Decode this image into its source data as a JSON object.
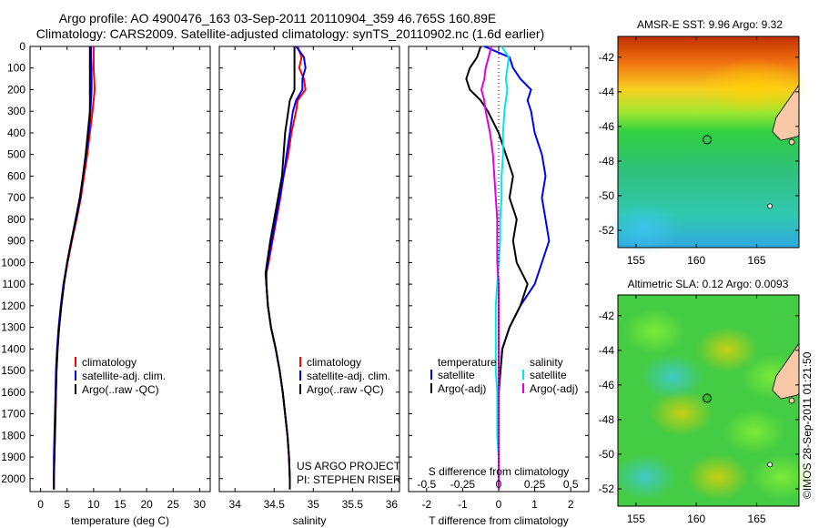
{
  "header": {
    "line1": "Argo profile: AO 4900476_163 03-Sep-2011 20110904_359 46.765S 160.89E",
    "line2": "Climatology: CARS2009. Satellite-adjusted climatology: synTS_20110902.nc (1.6d earlier)"
  },
  "colors": {
    "climatology": "#ff0000",
    "satellite": "#0000ff",
    "argo": "#000000",
    "sal_sat": "#00e5ee",
    "sal_argo": "#e000e0"
  },
  "depth_ticks": [
    "0",
    "100",
    "200",
    "300",
    "400",
    "500",
    "600",
    "700",
    "800",
    "900",
    "1000",
    "1100",
    "1200",
    "1300",
    "1400",
    "1500",
    "1600",
    "1700",
    "1800",
    "1900",
    "2000"
  ],
  "chart_data": [
    {
      "type": "line",
      "xlabel": "temperature (deg C)",
      "xlim": [
        -2,
        32
      ],
      "ylim": [
        0,
        2060
      ],
      "xticks": [
        "0",
        "5",
        "10",
        "15",
        "20",
        "25",
        "30"
      ],
      "legend": [
        "climatology",
        "satellite-adj. clim.",
        "Argo(..raw -QC)"
      ],
      "depth": [
        0,
        50,
        100,
        150,
        200,
        250,
        300,
        400,
        500,
        600,
        700,
        800,
        900,
        1000,
        1100,
        1200,
        1300,
        1400,
        1500,
        1600,
        1700,
        1800,
        1900,
        2000,
        2050
      ],
      "series": [
        {
          "name": "climatology",
          "values": [
            10,
            10,
            10,
            10.1,
            10.2,
            10,
            9.8,
            9.3,
            8.8,
            8.2,
            7.6,
            6.8,
            5.9,
            5.1,
            4.4,
            3.9,
            3.5,
            3.2,
            3.0,
            2.9,
            2.8,
            2.7,
            2.6,
            2.5,
            2.5
          ]
        },
        {
          "name": "satellite-adj. clim.",
          "values": [
            9.5,
            9.5,
            9.6,
            9.6,
            9.6,
            9.5,
            9.4,
            9.1,
            8.6,
            8.0,
            7.5,
            6.7,
            5.8,
            5.0,
            4.3,
            3.8,
            3.4,
            3.1,
            2.9,
            2.8,
            2.7,
            2.6,
            2.5,
            2.5,
            2.5
          ]
        },
        {
          "name": "Argo(..raw -QC)",
          "values": [
            9.3,
            9.3,
            9.3,
            9.3,
            9.3,
            9.3,
            9.3,
            8.9,
            8.5,
            8.0,
            7.4,
            6.6,
            5.8,
            5.0,
            4.4,
            3.9,
            3.5,
            3.2,
            3.0,
            2.9,
            2.8,
            2.7,
            2.6,
            2.5,
            2.5
          ]
        }
      ]
    },
    {
      "type": "line",
      "xlabel": "salinity",
      "xlim": [
        33.8,
        36.1
      ],
      "ylim": [
        0,
        2060
      ],
      "xticks": [
        "34",
        "34.5",
        "35",
        "35.5",
        "36"
      ],
      "legend": [
        "climatology",
        "satellite-adj. clim.",
        "Argo(..raw -QC)"
      ],
      "annotation": [
        "US ARGO PROJECT",
        "PI: STEPHEN RISER"
      ],
      "depth": [
        0,
        50,
        100,
        150,
        200,
        250,
        300,
        400,
        500,
        600,
        700,
        800,
        900,
        1000,
        1050,
        1100,
        1200,
        1300,
        1400,
        1500,
        1600,
        1700,
        1800,
        1900,
        2000,
        2050
      ],
      "series": [
        {
          "name": "climatology",
          "values": [
            34.8,
            34.85,
            34.82,
            34.88,
            34.9,
            34.8,
            34.78,
            34.72,
            34.68,
            34.62,
            34.58,
            34.53,
            34.48,
            34.43,
            34.4,
            34.4,
            34.42,
            34.46,
            34.52,
            34.57,
            34.61,
            34.64,
            34.67,
            34.69,
            34.7,
            34.7
          ]
        },
        {
          "name": "satellite-adj. clim.",
          "values": [
            34.78,
            34.88,
            34.9,
            34.86,
            34.86,
            34.78,
            34.74,
            34.7,
            34.66,
            34.62,
            34.57,
            34.52,
            34.47,
            34.42,
            34.4,
            34.4,
            34.42,
            34.46,
            34.52,
            34.57,
            34.61,
            34.64,
            34.67,
            34.69,
            34.7,
            34.7
          ]
        },
        {
          "name": "Argo(..raw -QC)",
          "values": [
            34.76,
            34.76,
            34.76,
            34.76,
            34.76,
            34.7,
            34.68,
            34.64,
            34.62,
            34.6,
            34.55,
            34.5,
            34.45,
            34.41,
            34.39,
            34.4,
            34.42,
            34.46,
            34.52,
            34.57,
            34.61,
            34.64,
            34.67,
            34.69,
            34.7,
            34.7
          ]
        }
      ]
    },
    {
      "type": "line",
      "xlabel": "T difference from climatology",
      "xlabel_top": "S difference from climatology",
      "xlim": [
        -2.5,
        2.5
      ],
      "ylim": [
        0,
        2060
      ],
      "xticks": [
        "-2",
        "-1",
        "0",
        "1",
        "2"
      ],
      "xticks_top": [
        "-0.5",
        "-0.25",
        "0",
        "0.25",
        "0.5"
      ],
      "legend_temperature": [
        "temperature",
        "satellite",
        "Argo(-adj)"
      ],
      "legend_salinity": [
        "salinity",
        "satellite",
        "Argo(-adj)"
      ],
      "depth": [
        0,
        50,
        100,
        150,
        200,
        250,
        300,
        400,
        500,
        600,
        700,
        800,
        900,
        1000,
        1100,
        1200,
        1300,
        1400,
        1500,
        1600,
        1700,
        1800,
        1900,
        2000,
        2050
      ],
      "series": [
        {
          "name": "T satellite",
          "values": [
            -0.4,
            0.3,
            0.4,
            0.6,
            0.9,
            0.8,
            0.9,
            1.0,
            1.2,
            1.3,
            1.2,
            1.3,
            1.4,
            1.2,
            1.0,
            0.6,
            0.3,
            0.1,
            0.05,
            0,
            0,
            0,
            0,
            0,
            0
          ]
        },
        {
          "name": "T Argo",
          "values": [
            -0.5,
            -0.6,
            -0.8,
            -0.9,
            -0.8,
            -0.5,
            -0.3,
            0,
            0.2,
            0.4,
            0.3,
            0.5,
            0.4,
            0.5,
            0.8,
            0.6,
            0.3,
            0.1,
            0.05,
            0,
            0,
            0,
            0,
            0,
            0
          ]
        },
        {
          "name": "S satellite",
          "values": [
            0.02,
            0.07,
            0.06,
            0.05,
            0.06,
            0.05,
            0.04,
            0.03,
            0.03,
            0.02,
            0.02,
            0.01,
            0.01,
            0.0,
            -0.01,
            -0.02,
            -0.02,
            -0.02,
            -0.02,
            -0.01,
            -0.01,
            -0.01,
            0,
            0,
            0
          ]
        },
        {
          "name": "S Argo",
          "values": [
            -0.05,
            -0.07,
            -0.09,
            -0.1,
            -0.12,
            -0.1,
            -0.09,
            -0.06,
            -0.04,
            -0.03,
            -0.02,
            -0.01,
            -0.01,
            -0.01,
            0,
            0,
            0,
            0,
            0,
            0,
            0,
            0,
            0,
            0,
            0
          ]
        }
      ]
    },
    {
      "type": "heatmap",
      "title": "AMSR-E SST: 9.96 Argo: 9.32",
      "xticks": [
        "155",
        "160",
        "165"
      ],
      "yticks": [
        "-42",
        "-44",
        "-46",
        "-48",
        "-50",
        "-52"
      ],
      "xlim": [
        153.5,
        168.5
      ],
      "ylim": [
        -53,
        -40.8
      ],
      "argo_position": {
        "lon": 160.89,
        "lat": -46.765
      }
    },
    {
      "type": "heatmap",
      "title": "Altimetric SLA: 0.12 Argo: 0.0093",
      "xticks": [
        "155",
        "160",
        "165"
      ],
      "yticks": [
        "-42",
        "-44",
        "-46",
        "-48",
        "-50",
        "-52"
      ],
      "xlim": [
        153.5,
        168.5
      ],
      "ylim": [
        -53,
        -40.8
      ],
      "argo_position": {
        "lon": 160.89,
        "lat": -46.765
      }
    }
  ],
  "credit": "©IMOS 28-Sep-2011 01:21:50"
}
